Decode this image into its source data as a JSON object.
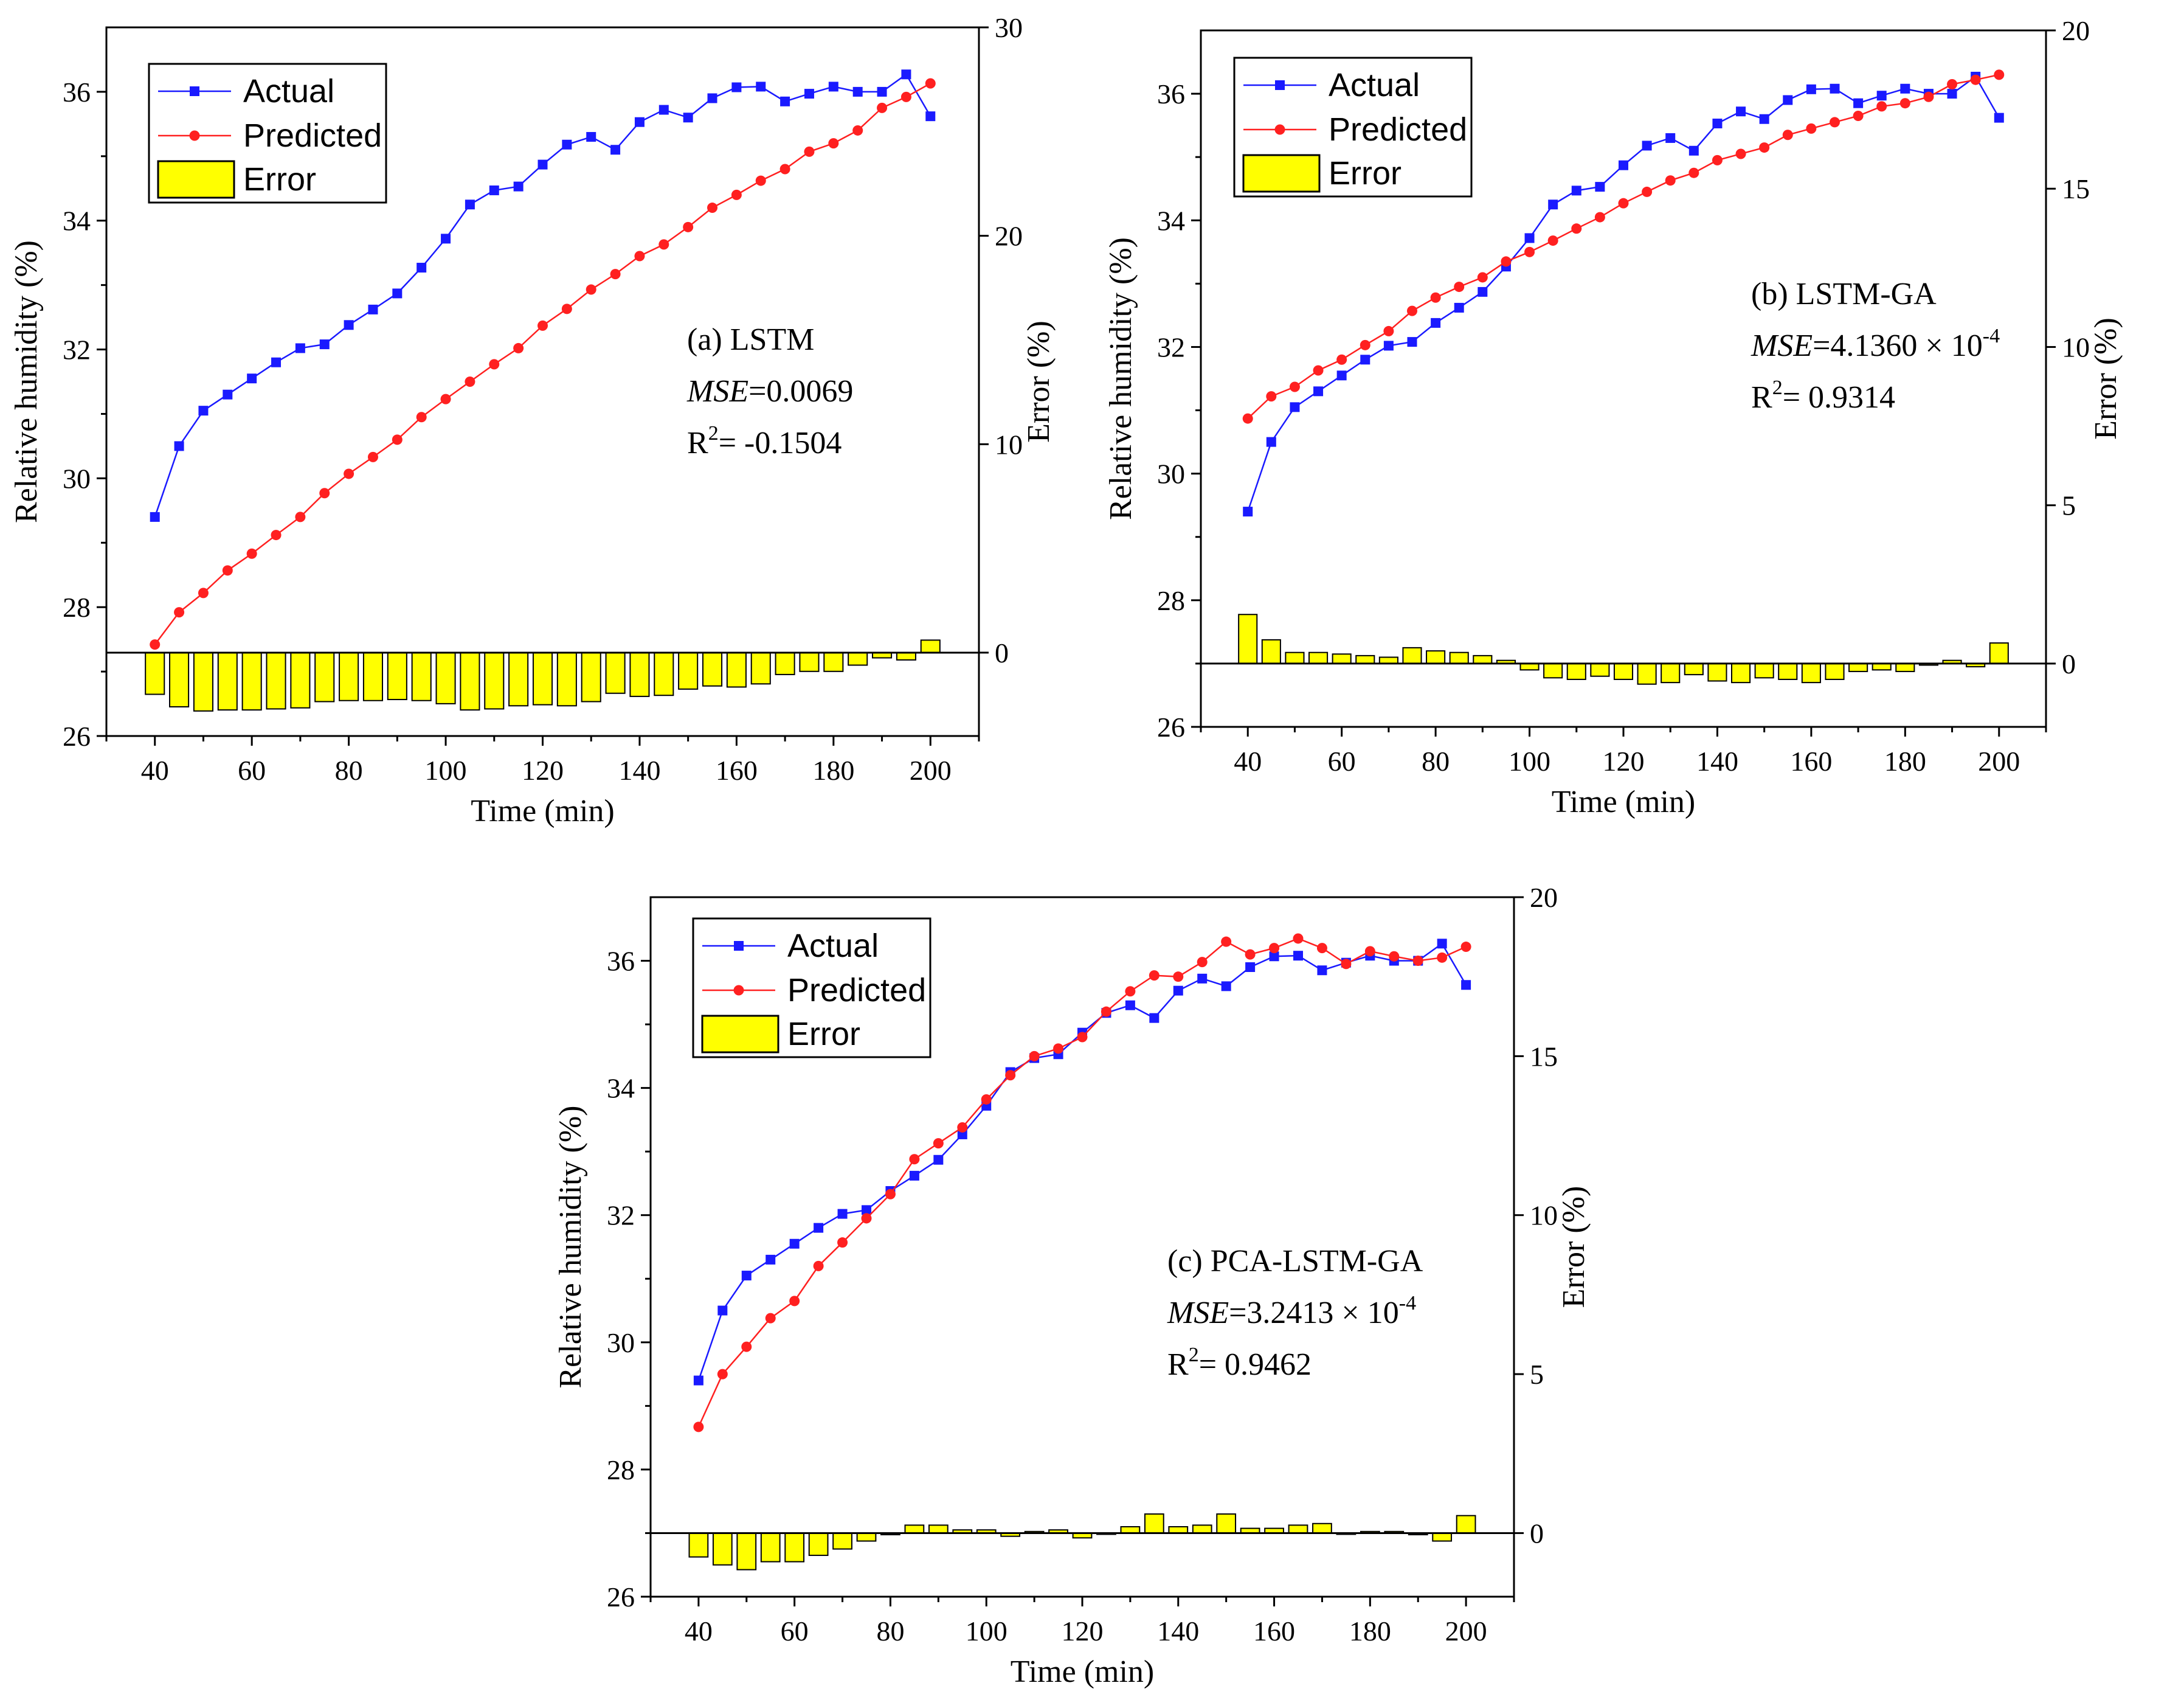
{
  "chart_data": [
    {
      "type": "line",
      "panel_label": "(a) LSTM",
      "mse_label": "MSE",
      "mse_value": "=0.0069",
      "r2_label": "R",
      "r2_sup": "2",
      "r2_value": "= -0.1504",
      "xlabel": "Time (min)",
      "ylabel": "Relative humidity (%)",
      "y2label": "Error (%)",
      "xlim": [
        30,
        210
      ],
      "ylim": [
        26,
        37
      ],
      "y2lim": [
        -4,
        30
      ],
      "xticks": [
        40,
        60,
        80,
        100,
        120,
        140,
        160,
        180,
        200
      ],
      "yticks": [
        26,
        28,
        30,
        32,
        34,
        36
      ],
      "y2ticks": [
        0,
        10,
        20,
        30
      ],
      "legend": [
        "Actual",
        "Predicted",
        "Error"
      ],
      "x": [
        40,
        45,
        50,
        55,
        60,
        65,
        70,
        75,
        80,
        85,
        90,
        95,
        100,
        105,
        110,
        115,
        120,
        125,
        130,
        135,
        140,
        145,
        150,
        155,
        160,
        165,
        170,
        175,
        180,
        185,
        190,
        195,
        200
      ],
      "series": [
        {
          "name": "Actual",
          "color": "#1a1aff",
          "marker": "square",
          "values": [
            29.4,
            30.5,
            31.05,
            31.3,
            31.55,
            31.8,
            32.02,
            32.08,
            32.38,
            32.62,
            32.87,
            33.27,
            33.72,
            34.25,
            34.47,
            34.53,
            34.87,
            35.18,
            35.3,
            35.1,
            35.53,
            35.72,
            35.6,
            35.9,
            36.07,
            36.08,
            35.85,
            35.97,
            36.08,
            36.0,
            36.0,
            36.27,
            35.62
          ]
        },
        {
          "name": "Predicted",
          "color": "#ff2020",
          "marker": "circle",
          "values": [
            27.42,
            27.92,
            28.22,
            28.57,
            28.83,
            29.12,
            29.4,
            29.77,
            30.07,
            30.33,
            30.6,
            30.95,
            31.23,
            31.5,
            31.77,
            32.02,
            32.37,
            32.63,
            32.93,
            33.17,
            33.45,
            33.63,
            33.9,
            34.2,
            34.4,
            34.62,
            34.8,
            35.07,
            35.2,
            35.4,
            35.75,
            35.92,
            36.13
          ]
        },
        {
          "name": "Error",
          "color": "#ffff00",
          "type": "bar",
          "values": [
            -2.0,
            -2.6,
            -2.8,
            -2.75,
            -2.75,
            -2.7,
            -2.65,
            -2.35,
            -2.3,
            -2.3,
            -2.25,
            -2.3,
            -2.45,
            -2.75,
            -2.7,
            -2.55,
            -2.5,
            -2.55,
            -2.35,
            -1.95,
            -2.1,
            -2.05,
            -1.75,
            -1.6,
            -1.65,
            -1.5,
            -1.05,
            -0.9,
            -0.9,
            -0.6,
            -0.25,
            -0.35,
            0.6
          ]
        }
      ]
    },
    {
      "type": "line",
      "panel_label": "(b) LSTM-GA",
      "mse_label": "MSE",
      "mse_value": "=4.1360 × 10",
      "mse_exp": "-4",
      "r2_label": "R",
      "r2_sup": "2",
      "r2_value": "= 0.9314",
      "xlabel": "Time (min)",
      "ylabel": "Relative humidity (%)",
      "y2label": "Error (%)",
      "xlim": [
        30,
        210
      ],
      "ylim": [
        26,
        37
      ],
      "y2lim": [
        -2,
        20
      ],
      "xticks": [
        40,
        60,
        80,
        100,
        120,
        140,
        160,
        180,
        200
      ],
      "yticks": [
        26,
        28,
        30,
        32,
        34,
        36
      ],
      "y2ticks": [
        0,
        5,
        10,
        15,
        20
      ],
      "legend": [
        "Actual",
        "Predicted",
        "Error"
      ],
      "x": [
        40,
        45,
        50,
        55,
        60,
        65,
        70,
        75,
        80,
        85,
        90,
        95,
        100,
        105,
        110,
        115,
        120,
        125,
        130,
        135,
        140,
        145,
        150,
        155,
        160,
        165,
        170,
        175,
        180,
        185,
        190,
        195,
        200
      ],
      "series": [
        {
          "name": "Actual",
          "color": "#1a1aff",
          "marker": "square",
          "values": [
            29.4,
            30.5,
            31.05,
            31.3,
            31.55,
            31.8,
            32.02,
            32.08,
            32.38,
            32.62,
            32.87,
            33.27,
            33.72,
            34.25,
            34.47,
            34.53,
            34.87,
            35.18,
            35.3,
            35.1,
            35.53,
            35.72,
            35.6,
            35.9,
            36.07,
            36.08,
            35.85,
            35.97,
            36.08,
            36.0,
            36.0,
            36.27,
            35.62
          ]
        },
        {
          "name": "Predicted",
          "color": "#ff2020",
          "marker": "circle",
          "values": [
            30.87,
            31.22,
            31.37,
            31.63,
            31.8,
            32.03,
            32.25,
            32.57,
            32.78,
            32.95,
            33.1,
            33.35,
            33.5,
            33.68,
            33.87,
            34.05,
            34.27,
            34.45,
            34.63,
            34.75,
            34.95,
            35.05,
            35.15,
            35.35,
            35.45,
            35.55,
            35.65,
            35.8,
            35.85,
            35.95,
            36.15,
            36.22,
            36.3
          ]
        },
        {
          "name": "Error",
          "color": "#ffff00",
          "type": "bar",
          "values": [
            1.55,
            0.75,
            0.35,
            0.35,
            0.3,
            0.25,
            0.2,
            0.5,
            0.4,
            0.35,
            0.25,
            0.1,
            -0.2,
            -0.45,
            -0.5,
            -0.4,
            -0.5,
            -0.65,
            -0.6,
            -0.35,
            -0.55,
            -0.6,
            -0.45,
            -0.5,
            -0.6,
            -0.5,
            -0.25,
            -0.2,
            -0.25,
            -0.05,
            0.1,
            -0.1,
            0.65
          ]
        }
      ]
    },
    {
      "type": "line",
      "panel_label": "(c) PCA-LSTM-GA",
      "mse_label": "MSE",
      "mse_value": "=3.2413 × 10",
      "mse_exp": "-4",
      "r2_label": "R",
      "r2_sup": "2",
      "r2_value": "= 0.9462",
      "xlabel": "Time (min)",
      "ylabel": "Relative humidity (%)",
      "y2label": "Error (%)",
      "xlim": [
        30,
        210
      ],
      "ylim": [
        26,
        37
      ],
      "y2lim": [
        -2,
        20
      ],
      "xticks": [
        40,
        60,
        80,
        100,
        120,
        140,
        160,
        180,
        200
      ],
      "yticks": [
        26,
        28,
        30,
        32,
        34,
        36
      ],
      "y2ticks": [
        0,
        5,
        10,
        15,
        20
      ],
      "legend": [
        "Actual",
        "Predicted",
        "Error"
      ],
      "x": [
        40,
        45,
        50,
        55,
        60,
        65,
        70,
        75,
        80,
        85,
        90,
        95,
        100,
        105,
        110,
        115,
        120,
        125,
        130,
        135,
        140,
        145,
        150,
        155,
        160,
        165,
        170,
        175,
        180,
        185,
        190,
        195,
        200
      ],
      "series": [
        {
          "name": "Actual",
          "color": "#1a1aff",
          "marker": "square",
          "values": [
            29.4,
            30.5,
            31.05,
            31.3,
            31.55,
            31.8,
            32.02,
            32.08,
            32.38,
            32.62,
            32.87,
            33.27,
            33.72,
            34.25,
            34.47,
            34.53,
            34.87,
            35.18,
            35.3,
            35.1,
            35.53,
            35.72,
            35.6,
            35.9,
            36.07,
            36.08,
            35.85,
            35.97,
            36.08,
            36.0,
            36.0,
            36.27,
            35.62
          ]
        },
        {
          "name": "Predicted",
          "color": "#ff2020",
          "marker": "circle",
          "values": [
            28.67,
            29.5,
            29.93,
            30.38,
            30.65,
            31.2,
            31.57,
            31.95,
            32.33,
            32.88,
            33.13,
            33.38,
            33.82,
            34.2,
            34.5,
            34.62,
            34.8,
            35.2,
            35.52,
            35.77,
            35.75,
            35.98,
            36.3,
            36.1,
            36.2,
            36.35,
            36.2,
            35.95,
            36.15,
            36.07,
            36.0,
            36.05,
            36.22
          ]
        },
        {
          "name": "Error",
          "color": "#ffff00",
          "type": "bar",
          "values": [
            -0.75,
            -1.0,
            -1.15,
            -0.9,
            -0.9,
            -0.7,
            -0.5,
            -0.25,
            -0.05,
            0.25,
            0.25,
            0.1,
            0.1,
            -0.1,
            0.05,
            0.1,
            -0.15,
            0.0,
            0.2,
            0.6,
            0.2,
            0.25,
            0.6,
            0.15,
            0.15,
            0.25,
            0.3,
            0.0,
            0.05,
            0.05,
            -0.05,
            -0.25,
            0.55
          ]
        }
      ]
    }
  ]
}
